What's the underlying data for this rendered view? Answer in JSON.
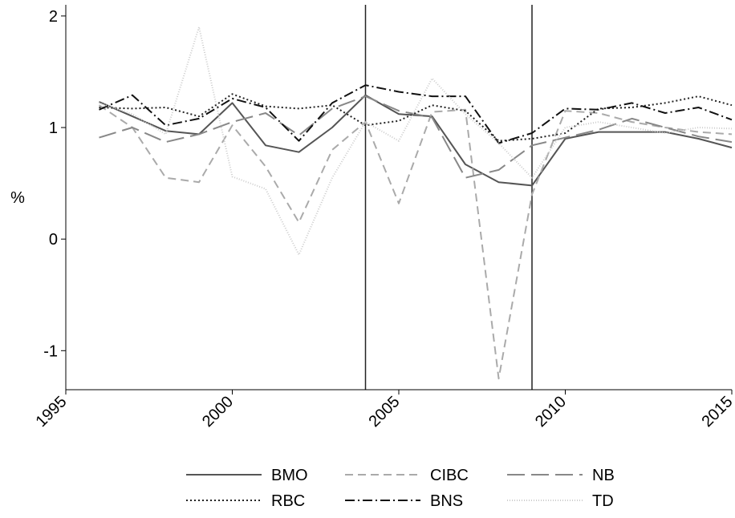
{
  "chart_data": {
    "type": "line",
    "title": "",
    "xlabel": "",
    "ylabel": "%",
    "xlim": [
      1995,
      2015
    ],
    "ylim": [
      -1.35,
      2.1
    ],
    "xticks": [
      1995,
      2000,
      2005,
      2010,
      2015
    ],
    "yticks": [
      -1,
      0,
      1,
      2
    ],
    "xtick_labels": [
      "1995",
      "2000",
      "2005",
      "2010",
      "2015"
    ],
    "ytick_labels": [
      "-1",
      "0",
      "1",
      "2"
    ],
    "grid": false,
    "legend_position": "bottom",
    "reference_lines_x": [
      2004,
      2009
    ],
    "x": [
      1996,
      1997,
      1998,
      1999,
      2000,
      2001,
      2002,
      2003,
      2004,
      2005,
      2006,
      2007,
      2008,
      2009,
      2010,
      2011,
      2012,
      2013,
      2014,
      2015
    ],
    "series": [
      {
        "name": "BMO",
        "color": "#555555",
        "dash": "solid",
        "values": [
          1.23,
          1.1,
          0.97,
          0.94,
          1.22,
          0.84,
          0.78,
          1.0,
          1.29,
          1.12,
          1.1,
          0.67,
          0.51,
          0.48,
          0.9,
          0.96,
          0.96,
          0.96,
          0.9,
          0.82
        ]
      },
      {
        "name": "CIBC",
        "color": "#aaaaaa",
        "dash": "dashed",
        "values": [
          1.2,
          1.0,
          0.55,
          0.51,
          1.02,
          0.65,
          0.15,
          0.8,
          1.05,
          0.32,
          1.14,
          1.16,
          -1.25,
          0.4,
          1.15,
          1.13,
          1.05,
          1.0,
          0.96,
          0.94
        ]
      },
      {
        "name": "NB",
        "color": "#888888",
        "dash": "longdash",
        "values": [
          0.91,
          1.0,
          0.87,
          0.94,
          1.05,
          1.13,
          0.93,
          1.17,
          1.28,
          1.15,
          1.09,
          0.55,
          0.62,
          0.84,
          0.91,
          0.98,
          1.08,
          1.0,
          0.92,
          0.87
        ]
      },
      {
        "name": "RBC",
        "color": "#222222",
        "dash": "dotted",
        "values": [
          1.18,
          1.17,
          1.18,
          1.1,
          1.3,
          1.19,
          1.17,
          1.2,
          1.02,
          1.06,
          1.2,
          1.15,
          0.88,
          0.9,
          0.95,
          1.17,
          1.18,
          1.22,
          1.28,
          1.2
        ]
      },
      {
        "name": "BNS",
        "color": "#111111",
        "dash": "dashdot",
        "values": [
          1.16,
          1.29,
          1.02,
          1.08,
          1.26,
          1.18,
          0.88,
          1.22,
          1.38,
          1.32,
          1.28,
          1.28,
          0.86,
          0.95,
          1.17,
          1.16,
          1.22,
          1.13,
          1.18,
          1.07
        ]
      },
      {
        "name": "TD",
        "color": "#cccccc",
        "dash": "finedot",
        "values": [
          1.22,
          1.12,
          0.94,
          1.9,
          0.56,
          0.45,
          -0.14,
          0.55,
          1.05,
          0.88,
          1.44,
          1.12,
          0.86,
          0.55,
          1.0,
          1.05,
          1.0,
          0.95,
          1.0,
          0.99
        ]
      }
    ]
  }
}
